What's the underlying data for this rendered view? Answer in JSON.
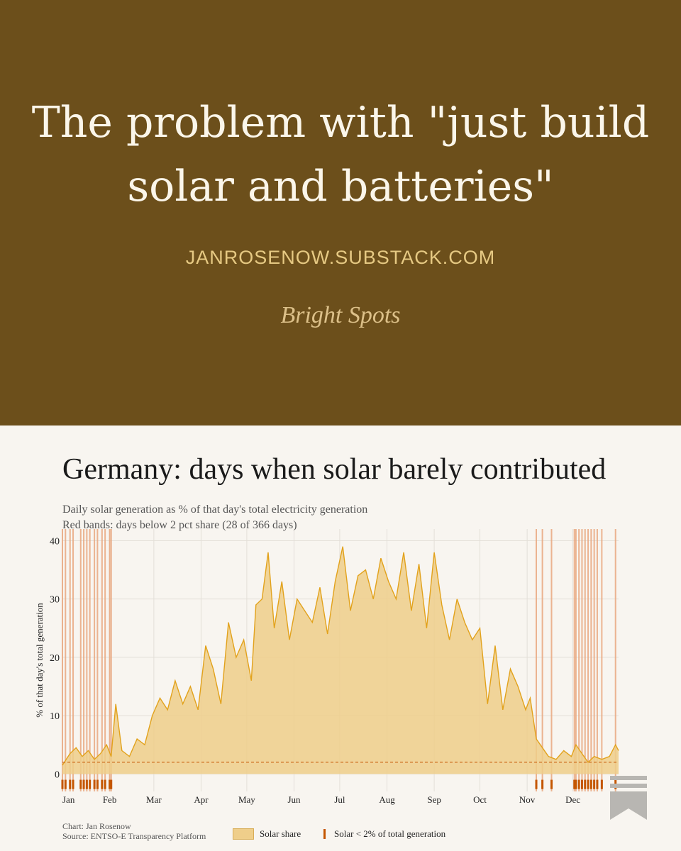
{
  "header": {
    "title": "The problem with \"just build solar and batteries\"",
    "site": "JANROSENOW.SUBSTACK.COM",
    "publication": "Bright Spots"
  },
  "colors": {
    "header_bg": "#6c4f1b",
    "area_fill": "#efce8a",
    "line": "#e2a21c",
    "band": "#e9a77f",
    "tick": "#c45600",
    "threshold": "#c45600"
  },
  "icons": [
    "bookmark-icon"
  ],
  "footer": {
    "credit": "Chart: Jan Rosenow",
    "source": "Source: ENTSO-E Transparency Platform"
  },
  "chart_data": {
    "type": "area",
    "title": "Germany: days when solar barely contributed",
    "subtitle": [
      "Daily solar generation as % of that day's total electricity generation",
      "Red bands: days below 2 pct share (28 of 366 days)"
    ],
    "ylabel": "% of that day's total generation",
    "xlabel": "",
    "ylim": [
      -3,
      42
    ],
    "yticks": [
      0,
      10,
      20,
      30,
      40
    ],
    "x_month_ticks": [
      "Jan",
      "Feb",
      "Mar",
      "Apr",
      "May",
      "Jun",
      "Jul",
      "Aug",
      "Sep",
      "Oct",
      "Nov",
      "Dec"
    ],
    "x_unit": "day of year (1-366)",
    "threshold": 2,
    "grid": true,
    "legend": {
      "position": "bottom",
      "items": [
        "Solar share",
        "Solar < 2% of total generation"
      ]
    },
    "low_days": [
      1,
      3,
      6,
      8,
      13,
      15,
      17,
      19,
      22,
      24,
      27,
      29,
      32,
      33,
      312,
      316,
      322,
      337,
      338,
      340,
      342,
      344,
      346,
      348,
      350,
      352,
      355,
      364
    ],
    "series": [
      {
        "name": "Solar share",
        "x": [
          1,
          6,
          10,
          14,
          18,
          22,
          26,
          30,
          33,
          36,
          40,
          45,
          50,
          55,
          60,
          65,
          70,
          75,
          80,
          85,
          90,
          95,
          100,
          105,
          110,
          115,
          120,
          125,
          128,
          132,
          136,
          140,
          145,
          150,
          155,
          160,
          165,
          170,
          175,
          180,
          185,
          190,
          195,
          200,
          205,
          210,
          215,
          220,
          225,
          230,
          235,
          240,
          245,
          250,
          255,
          260,
          265,
          270,
          275,
          280,
          285,
          290,
          295,
          300,
          305,
          308,
          312,
          316,
          320,
          325,
          330,
          335,
          338,
          342,
          346,
          350,
          355,
          360,
          364,
          366
        ],
        "y": [
          1.5,
          3.5,
          4.5,
          3.0,
          4.0,
          2.5,
          3.5,
          5.0,
          3.0,
          12,
          4.0,
          3.0,
          6.0,
          5.0,
          10,
          13,
          11,
          16,
          12,
          15,
          11,
          22,
          18,
          12,
          26,
          20,
          23,
          16,
          29,
          30,
          38,
          25,
          33,
          23,
          30,
          28,
          26,
          32,
          24,
          33,
          39,
          28,
          34,
          35,
          30,
          37,
          33,
          30,
          38,
          28,
          36,
          25,
          38,
          29,
          23,
          30,
          26,
          23,
          25,
          12,
          22,
          11,
          18,
          15,
          11,
          13,
          6,
          4.5,
          3.0,
          2.5,
          4.0,
          3.0,
          5.0,
          3.5,
          2.0,
          3.0,
          2.5,
          3.0,
          5.0,
          4.0
        ]
      }
    ]
  }
}
